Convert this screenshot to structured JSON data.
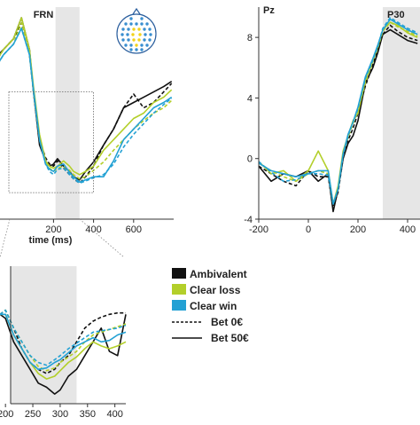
{
  "colors": {
    "ambivalent": "#111111",
    "clear_loss": "#b3cf2a",
    "clear_win": "#23a1d4",
    "shade": "#e6e6e6",
    "axis": "#333333"
  },
  "legend": {
    "items": [
      {
        "label": "Ambivalent",
        "color": "#111111"
      },
      {
        "label": "Clear loss",
        "color": "#b3cf2a"
      },
      {
        "label": "Clear win",
        "color": "#23a1d4"
      }
    ],
    "styles": [
      {
        "label": "Bet 0€",
        "dash": "dashed"
      },
      {
        "label": "Bet 50€",
        "dash": "solid"
      }
    ]
  },
  "chart_data": [
    {
      "type": "line",
      "panel": "top-left",
      "title": "FRN",
      "xlabel": "time (ms)",
      "ylabel": "",
      "xlim": [
        -200,
        800
      ],
      "ylim": [
        6,
        -14
      ],
      "x_ticks": [
        "200",
        "400",
        "600"
      ],
      "y_ticks": [],
      "shaded_window": [
        210,
        330
      ],
      "zoom_box": {
        "x": [
          -200,
          400
        ],
        "y": [
          -6,
          3.5
        ]
      },
      "series": [
        {
          "name": "Ambivalent",
          "bet": "Bet 50€",
          "color": "#111111",
          "dash": "solid",
          "x": [
            -200,
            -150,
            -100,
            -50,
            0,
            40,
            80,
            100,
            130,
            160,
            180,
            200,
            220,
            250,
            280,
            300,
            330,
            360,
            400,
            450,
            500,
            550,
            600,
            650,
            700,
            750,
            790
          ],
          "y": [
            -2,
            -6,
            -9,
            -10,
            -11,
            -13,
            -10,
            -6,
            -1,
            0.5,
            1,
            0.8,
            0.3,
            1,
            1.5,
            2,
            2.3,
            1.5,
            0.6,
            -1,
            -2.5,
            -4.5,
            -5,
            -5.5,
            -6,
            -6.5,
            -7
          ]
        },
        {
          "name": "Ambivalent",
          "bet": "Bet 0€",
          "color": "#111111",
          "dash": "dashed",
          "x": [
            -200,
            -150,
            -100,
            -50,
            0,
            40,
            80,
            100,
            130,
            160,
            180,
            200,
            220,
            250,
            280,
            300,
            330,
            360,
            400,
            450,
            500,
            550,
            600,
            650,
            700,
            750,
            790
          ],
          "y": [
            -2,
            -5.5,
            -8.5,
            -10,
            -11,
            -12.5,
            -9.5,
            -6,
            -1.5,
            0.2,
            0.8,
            1,
            0.5,
            1.2,
            1.8,
            2.2,
            2.6,
            2,
            1,
            -1,
            -2.5,
            -4.5,
            -5.8,
            -4.5,
            -5,
            -6,
            -6.8
          ]
        },
        {
          "name": "Clear loss",
          "bet": "Bet 50€",
          "color": "#b3cf2a",
          "dash": "solid",
          "x": [
            -200,
            -150,
            -100,
            -50,
            0,
            40,
            80,
            100,
            130,
            160,
            180,
            200,
            220,
            250,
            280,
            300,
            330,
            360,
            400,
            450,
            500,
            550,
            600,
            650,
            700,
            750,
            790
          ],
          "y": [
            -2,
            -5.5,
            -8.5,
            -10,
            -11,
            -13,
            -10,
            -6.5,
            -2,
            0.5,
            1,
            1.2,
            1,
            0.5,
            1,
            1.5,
            1.8,
            1.5,
            1,
            -0.5,
            -1.5,
            -2.5,
            -3.5,
            -4,
            -5,
            -5.5,
            -6.2
          ]
        },
        {
          "name": "Clear loss",
          "bet": "Bet 0€",
          "color": "#b3cf2a",
          "dash": "dashed",
          "x": [
            -200,
            -150,
            -100,
            -50,
            0,
            40,
            80,
            100,
            130,
            160,
            180,
            200,
            220,
            250,
            280,
            300,
            330,
            360,
            400,
            450,
            500,
            550,
            600,
            650,
            700,
            750,
            790
          ],
          "y": [
            -2,
            -5,
            -8,
            -9.5,
            -10.5,
            -12.5,
            -9.5,
            -6,
            -1.5,
            0.5,
            1.2,
            1.5,
            1.2,
            1,
            1.4,
            1.8,
            2.2,
            2,
            1.4,
            0.6,
            -0.5,
            -1.5,
            -2.5,
            -3.3,
            -4,
            -4.5,
            -5.2
          ]
        },
        {
          "name": "Clear win",
          "bet": "Bet 50€",
          "color": "#23a1d4",
          "dash": "solid",
          "x": [
            -200,
            -150,
            -100,
            -50,
            0,
            40,
            80,
            100,
            130,
            160,
            180,
            200,
            220,
            250,
            280,
            300,
            330,
            360,
            400,
            450,
            500,
            550,
            600,
            650,
            700,
            750,
            790
          ],
          "y": [
            -2,
            -5,
            -8,
            -9.5,
            -10.5,
            -12,
            -9.5,
            -6.2,
            -1.5,
            0.8,
            1.3,
            1.5,
            1,
            0.8,
            1.6,
            2,
            2.5,
            2.3,
            2,
            2,
            0.5,
            -1.5,
            -2.5,
            -3.5,
            -4.5,
            -5,
            -5.5
          ]
        },
        {
          "name": "Clear win",
          "bet": "Bet 0€",
          "color": "#23a1d4",
          "dash": "dashed",
          "x": [
            -200,
            -150,
            -100,
            -50,
            0,
            40,
            80,
            100,
            130,
            160,
            180,
            200,
            220,
            250,
            280,
            300,
            330,
            360,
            400,
            450,
            500,
            550,
            600,
            650,
            700,
            750,
            790
          ],
          "y": [
            -2,
            -5,
            -8,
            -9.5,
            -10.5,
            -12,
            -9.5,
            -6,
            -1.5,
            0.8,
            1.5,
            1.8,
            1.3,
            1.2,
            1.8,
            2.2,
            2.6,
            2.4,
            2.1,
            1.8,
            0.8,
            -0.8,
            -2,
            -3,
            -4,
            -4.8,
            -5.4
          ]
        }
      ]
    },
    {
      "type": "line",
      "panel": "top-right",
      "title": "Pz",
      "shaded_label": "P30",
      "xlabel": "",
      "ylabel": "",
      "xlim": [
        -200,
        450
      ],
      "ylim": [
        -4,
        10
      ],
      "x_ticks": [
        "-200",
        "0",
        "200",
        "400"
      ],
      "y_ticks": [
        "-4",
        "0",
        "4",
        "8"
      ],
      "shaded_window": [
        300,
        450
      ],
      "series": [
        {
          "name": "Ambivalent",
          "bet": "Bet 50€",
          "color": "#111111",
          "dash": "solid",
          "x": [
            -200,
            -150,
            -100,
            -50,
            0,
            40,
            80,
            100,
            120,
            140,
            160,
            180,
            200,
            230,
            260,
            280,
            300,
            330,
            360,
            400,
            440
          ],
          "y": [
            -0.5,
            -1.5,
            -1,
            -1.2,
            -0.8,
            -1.5,
            -1,
            -3.5,
            -2,
            0,
            1,
            1.5,
            2.5,
            5,
            6,
            7,
            8.2,
            8.5,
            8.2,
            7.8,
            7.6
          ]
        },
        {
          "name": "Ambivalent",
          "bet": "Bet 0€",
          "color": "#111111",
          "dash": "dashed",
          "x": [
            -200,
            -150,
            -100,
            -50,
            0,
            40,
            80,
            100,
            120,
            140,
            160,
            180,
            200,
            230,
            260,
            280,
            300,
            330,
            360,
            400,
            440
          ],
          "y": [
            -0.5,
            -1,
            -1.5,
            -1.8,
            -0.8,
            -1.2,
            -1.2,
            -3.2,
            -2.2,
            0,
            1.2,
            2,
            3,
            4.8,
            6.2,
            7.2,
            8.2,
            8.8,
            8.4,
            8,
            7.8
          ]
        },
        {
          "name": "Clear loss",
          "bet": "Bet 50€",
          "color": "#b3cf2a",
          "dash": "solid",
          "x": [
            -200,
            -150,
            -100,
            -50,
            0,
            40,
            80,
            100,
            120,
            140,
            160,
            180,
            200,
            230,
            260,
            280,
            300,
            330,
            360,
            400,
            440
          ],
          "y": [
            -0.2,
            -1,
            -0.8,
            -1.5,
            -0.8,
            0.5,
            -0.8,
            -3,
            -1.8,
            0.5,
            1.5,
            2.5,
            3,
            5.2,
            6.5,
            7.4,
            8.5,
            9,
            8.8,
            8.3,
            8
          ]
        },
        {
          "name": "Clear loss",
          "bet": "Bet 0€",
          "color": "#b3cf2a",
          "dash": "dashed",
          "x": [
            -200,
            -150,
            -100,
            -50,
            0,
            40,
            80,
            100,
            120,
            140,
            160,
            180,
            200,
            230,
            260,
            280,
            300,
            330,
            360,
            400,
            440
          ],
          "y": [
            -0.3,
            -0.8,
            -1.2,
            -1.5,
            -1,
            -0.8,
            -1,
            -3,
            -2,
            0.3,
            1.4,
            2.3,
            3.2,
            5,
            6.4,
            7.3,
            8.4,
            9,
            8.7,
            8.4,
            8.1
          ]
        },
        {
          "name": "Clear win",
          "bet": "Bet 50€",
          "color": "#23a1d4",
          "dash": "solid",
          "x": [
            -200,
            -150,
            -100,
            -50,
            0,
            40,
            80,
            100,
            120,
            140,
            160,
            180,
            200,
            230,
            260,
            280,
            300,
            330,
            360,
            400,
            440
          ],
          "y": [
            -0.3,
            -0.8,
            -1,
            -1.2,
            -1,
            -0.8,
            -0.8,
            -3,
            -2,
            0.3,
            1.6,
            2.4,
            3.4,
            5.4,
            6.6,
            7.5,
            8.5,
            9.2,
            8.9,
            8.5,
            8.2
          ]
        },
        {
          "name": "Clear win",
          "bet": "Bet 0€",
          "color": "#23a1d4",
          "dash": "dashed",
          "x": [
            -200,
            -150,
            -100,
            -50,
            0,
            40,
            80,
            100,
            120,
            140,
            160,
            180,
            200,
            230,
            260,
            280,
            300,
            330,
            360,
            400,
            440
          ],
          "y": [
            -0.2,
            -0.9,
            -1.5,
            -1.4,
            -1,
            -1,
            -1.1,
            -3,
            -2,
            0.2,
            1.5,
            2.4,
            3.3,
            5.3,
            6.5,
            7.4,
            8.6,
            9.3,
            9,
            8.6,
            8.3
          ]
        }
      ]
    },
    {
      "type": "line",
      "panel": "bottom-left-inset",
      "title": "",
      "xlabel": "",
      "ylabel": "",
      "xlim": [
        190,
        420
      ],
      "ylim": [
        -6,
        4
      ],
      "x_ticks": [
        "200",
        "250",
        "300",
        "350",
        "400"
      ],
      "y_ticks": [],
      "shaded_window": [
        210,
        330
      ],
      "series": [
        {
          "name": "Ambivalent",
          "bet": "Bet 50€",
          "color": "#111111",
          "dash": "solid",
          "x": [
            190,
            200,
            215,
            230,
            245,
            260,
            275,
            290,
            300,
            315,
            330,
            345,
            360,
            375,
            390,
            405,
            420
          ],
          "y": [
            0.5,
            0.2,
            -1.5,
            -2.5,
            -3.5,
            -4.5,
            -4.8,
            -5.3,
            -5,
            -4,
            -3.5,
            -2.5,
            -1.5,
            -0.5,
            -2.2,
            -2.5,
            0.5
          ]
        },
        {
          "name": "Ambivalent",
          "bet": "Bet 0€",
          "color": "#111111",
          "dash": "dashed",
          "x": [
            190,
            200,
            215,
            230,
            245,
            260,
            275,
            290,
            300,
            315,
            330,
            345,
            360,
            375,
            390,
            405,
            420
          ],
          "y": [
            0.5,
            0.8,
            -0.5,
            -2,
            -3,
            -3.5,
            -3.8,
            -3.5,
            -3,
            -2.5,
            -1.5,
            -0.5,
            0,
            0.3,
            0.5,
            0.6,
            0.6
          ]
        },
        {
          "name": "Clear loss",
          "bet": "Bet 50€",
          "color": "#b3cf2a",
          "dash": "solid",
          "x": [
            190,
            200,
            215,
            230,
            245,
            260,
            275,
            290,
            300,
            315,
            330,
            345,
            360,
            375,
            390,
            405,
            420
          ],
          "y": [
            0.5,
            0.5,
            -1,
            -2,
            -3,
            -3.8,
            -4.2,
            -4,
            -3.6,
            -3,
            -2.6,
            -2,
            -1.5,
            -1.8,
            -2,
            -1.8,
            -1.5
          ]
        },
        {
          "name": "Clear loss",
          "bet": "Bet 0€",
          "color": "#b3cf2a",
          "dash": "dashed",
          "x": [
            190,
            200,
            215,
            230,
            245,
            260,
            275,
            290,
            300,
            315,
            330,
            345,
            360,
            375,
            390,
            405,
            420
          ],
          "y": [
            0.5,
            0.8,
            -0.5,
            -1.5,
            -2.5,
            -3.3,
            -3.6,
            -3.4,
            -3,
            -2.6,
            -2.2,
            -1.5,
            -1,
            -0.8,
            -0.6,
            -0.4,
            -0.2
          ]
        },
        {
          "name": "Clear win",
          "bet": "Bet 50€",
          "color": "#23a1d4",
          "dash": "solid",
          "x": [
            190,
            200,
            215,
            230,
            245,
            260,
            275,
            290,
            300,
            315,
            330,
            345,
            360,
            375,
            390,
            405,
            420
          ],
          "y": [
            0.5,
            0.5,
            -1,
            -2,
            -3,
            -3.5,
            -3.4,
            -3,
            -2.8,
            -2.3,
            -1.8,
            -1.5,
            -1.2,
            -1.5,
            -1.4,
            -1,
            -0.8
          ]
        },
        {
          "name": "Clear win",
          "bet": "Bet 0€",
          "color": "#23a1d4",
          "dash": "dashed",
          "x": [
            190,
            200,
            215,
            230,
            245,
            260,
            275,
            290,
            300,
            315,
            330,
            345,
            360,
            375,
            390,
            405,
            420
          ],
          "y": [
            0.5,
            0.8,
            -0.5,
            -1.5,
            -2.5,
            -3,
            -3.2,
            -2.8,
            -2.5,
            -2,
            -1.6,
            -1.2,
            -0.8,
            -0.7,
            -0.6,
            -0.5,
            -0.3
          ]
        }
      ]
    }
  ]
}
